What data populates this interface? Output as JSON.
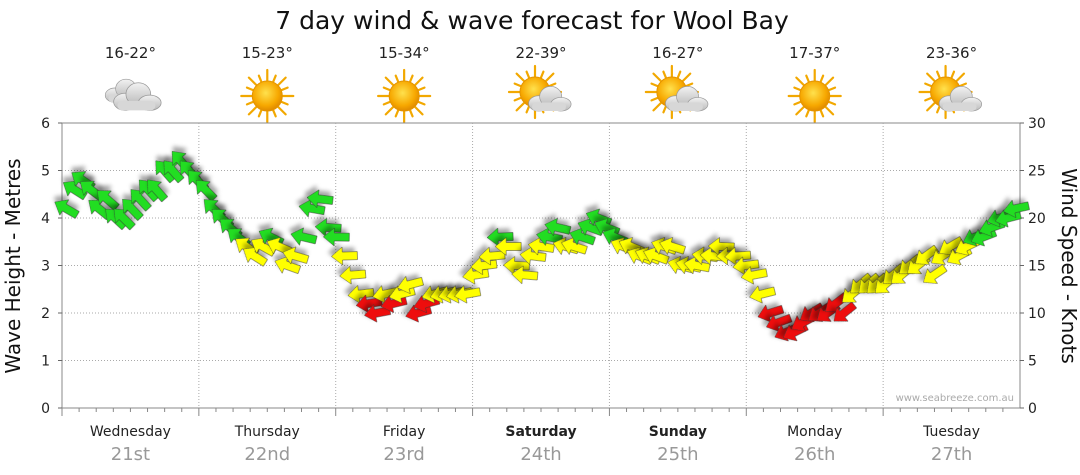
{
  "chart_data": {
    "type": "wind-wave-forecast",
    "title": "7 day wind & wave forecast for Wool Bay",
    "left_axis": {
      "label": "Wave Height - Metres",
      "ticks": [
        "0",
        "1",
        "2",
        "3",
        "4",
        "5",
        "6"
      ],
      "ylim": [
        0,
        6
      ]
    },
    "right_axis": {
      "label": "Wind Speed - Knots",
      "ticks": [
        "0",
        "5",
        "10",
        "15",
        "20",
        "25",
        "30"
      ],
      "ylim": [
        0,
        30
      ]
    },
    "watermark": "www.seabreeze.com.au",
    "days": [
      {
        "name": "Wednesday",
        "date": "21st",
        "temp": "16-22°",
        "weather": "cloudy-icon",
        "bold": false
      },
      {
        "name": "Thursday",
        "date": "22nd",
        "temp": "15-23°",
        "weather": "sunny-icon",
        "bold": false
      },
      {
        "name": "Friday",
        "date": "23rd",
        "temp": "15-34°",
        "weather": "sunny-icon",
        "bold": false
      },
      {
        "name": "Saturday",
        "date": "24th",
        "temp": "22-39°",
        "weather": "partly-cloudy-icon",
        "bold": true
      },
      {
        "name": "Sunday",
        "date": "25th",
        "temp": "16-27°",
        "weather": "partly-cloudy-icon",
        "bold": true
      },
      {
        "name": "Monday",
        "date": "26th",
        "temp": "17-37°",
        "weather": "sunny-icon",
        "bold": false
      },
      {
        "name": "Tuesday",
        "date": "27th",
        "temp": "23-36°",
        "weather": "partly-cloudy-icon",
        "bold": false
      }
    ],
    "wind_color_scale": {
      "green": "#22dd22",
      "yellow": "#ffff00",
      "red": "#ee1111"
    },
    "wind_knots_series": [
      [
        21,
        23,
        24,
        23,
        21,
        22,
        20,
        20,
        21,
        22,
        23,
        23,
        25,
        25,
        26,
        25,
        24,
        23,
        21,
        20,
        19,
        18,
        17,
        16,
        17,
        18,
        17,
        15,
        16,
        18,
        21,
        22,
        19,
        18,
        16,
        14,
        12,
        11,
        10,
        12,
        11,
        12,
        13,
        10,
        11,
        12,
        12,
        12,
        12,
        12,
        14,
        15,
        16,
        18,
        17,
        15,
        14,
        16,
        17,
        18,
        19,
        17,
        17,
        18,
        19,
        20,
        19,
        18,
        17,
        17,
        16,
        16,
        16,
        17,
        17,
        15,
        15,
        15,
        16,
        16,
        17,
        16,
        16,
        15,
        14,
        12,
        10,
        9,
        8,
        8,
        9,
        10,
        10,
        10,
        11,
        10,
        12,
        13,
        13,
        13,
        13,
        14,
        14,
        15,
        15,
        16,
        14,
        16,
        17,
        16,
        17,
        18,
        18,
        19,
        20,
        20,
        21
      ],
      []
    ],
    "wind_samples_per_day": 17
  }
}
